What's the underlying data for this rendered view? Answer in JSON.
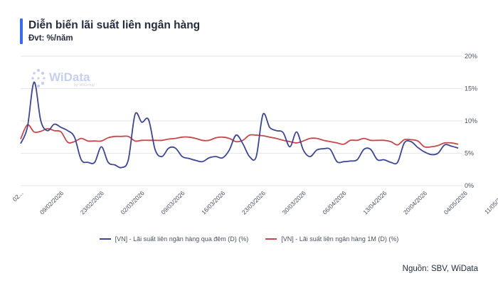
{
  "header": {
    "title": "Diễn biến lãi suất liên ngân hàng",
    "unit": "Đvt: %/năm"
  },
  "watermark": {
    "brand": "WiData",
    "sub": "by WiGroup"
  },
  "footer": {
    "source": "Nguồn: SBV, WiData"
  },
  "colors": {
    "accent": "#3b6cf0",
    "series_overnight": "#3c4692",
    "series_1m": "#c64749",
    "grid": "#e6e6e6"
  },
  "chart_data": {
    "type": "line",
    "title": "Diễn biến lãi suất liên ngân hàng",
    "ylabel": "Đvt: %/năm",
    "y_unit": "%",
    "ylim": [
      0,
      20
    ],
    "y_ticks": [
      0,
      5,
      10,
      15,
      20
    ],
    "y_tick_labels": [
      "0%",
      "5%",
      "10%",
      "15%",
      "20%"
    ],
    "x_ticks": [
      "02...",
      "09/02/2026",
      "23/02/2026",
      "02/03/2026",
      "09/03/2026",
      "16/03/2026",
      "23/03/2026",
      "30/03/2026",
      "06/04/2026",
      "13/04/2026",
      "20/04/2026",
      "04/05/2026",
      "11/05/2026"
    ],
    "x_tick_positions": [
      0,
      6,
      12,
      18,
      24,
      30,
      36,
      42,
      48,
      54,
      60,
      66,
      72
    ],
    "grid": "horizontal",
    "legend_position": "bottom",
    "series": [
      {
        "name": "[VN] - Lãi suất liên ngân hàng qua đêm (D) (%)",
        "values": [
          6.5,
          9.0,
          16.0,
          10.0,
          8.5,
          9.5,
          9.0,
          8.5,
          7.5,
          4.0,
          3.6,
          3.6,
          6.0,
          3.6,
          3.2,
          2.8,
          4.0,
          11.0,
          9.8,
          10.2,
          5.5,
          4.5,
          5.8,
          5.8,
          4.5,
          4.2,
          3.9,
          3.7,
          4.3,
          4.5,
          4.3,
          5.5,
          7.8,
          6.5,
          4.5,
          4.5,
          11.0,
          9.0,
          8.5,
          8.2,
          6.0,
          8.3,
          5.5,
          4.5,
          5.5,
          5.7,
          5.6,
          3.7,
          3.7,
          3.8,
          4.0,
          5.6,
          5.6,
          4.0,
          4.0,
          3.6,
          3.6,
          6.6,
          6.8,
          5.9,
          5.2,
          4.8,
          5.0,
          6.3,
          6.1,
          5.8
        ]
      },
      {
        "name": "[VN] - Lãi suất liên ngân hàng 1M (D) (%)",
        "values": [
          7.2,
          9.4,
          8.3,
          8.4,
          8.8,
          8.5,
          8.3,
          6.7,
          6.8,
          7.3,
          6.9,
          6.9,
          6.9,
          7.4,
          7.6,
          7.6,
          7.6,
          6.9,
          7.0,
          7.0,
          7.0,
          7.0,
          7.2,
          7.3,
          7.5,
          7.5,
          7.3,
          7.0,
          7.0,
          7.4,
          7.5,
          7.3,
          6.8,
          7.0,
          7.8,
          7.8,
          7.7,
          7.5,
          7.3,
          7.0,
          6.8,
          6.6,
          6.9,
          7.3,
          7.3,
          7.0,
          6.8,
          6.6,
          6.4,
          7.0,
          7.0,
          7.3,
          7.0,
          7.0,
          7.0,
          6.8,
          6.3,
          7.1,
          7.1,
          6.9,
          6.0,
          6.0,
          6.2,
          6.6,
          6.6,
          6.4
        ]
      }
    ]
  }
}
